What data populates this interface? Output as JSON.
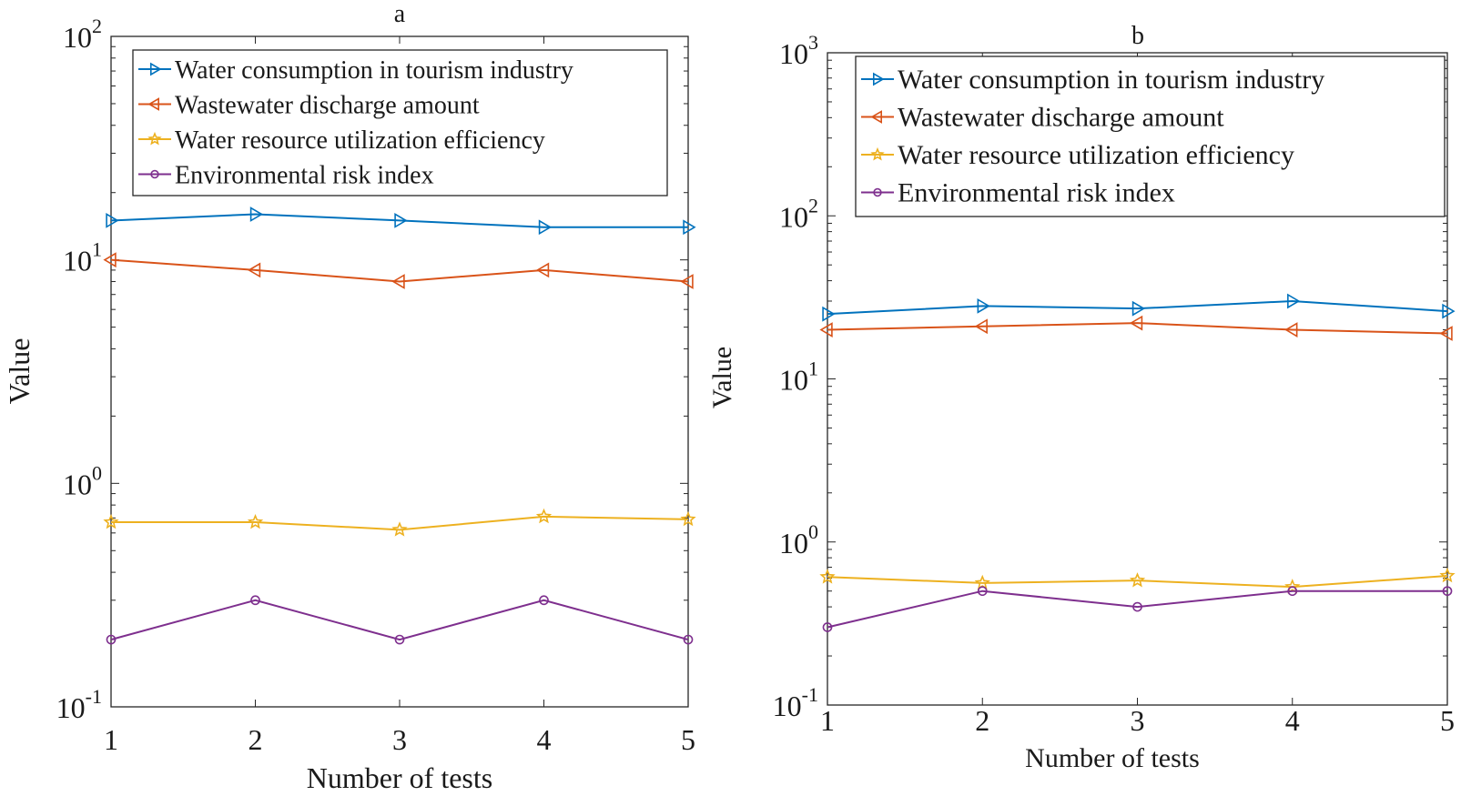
{
  "chart_data": [
    {
      "id": "a",
      "type": "line",
      "title": "a",
      "xlabel": "Number of tests",
      "ylabel": "Value",
      "yscale": "log",
      "ylim": [
        0.1,
        100
      ],
      "xlim": [
        1,
        5
      ],
      "x": [
        1,
        2,
        3,
        4,
        5
      ],
      "xtick_labels": [
        "1",
        "2",
        "3",
        "4",
        "5"
      ],
      "ytick_labels": [
        {
          "value": 0.1,
          "base": "10",
          "exp": "-1"
        },
        {
          "value": 1,
          "base": "10",
          "exp": "0"
        },
        {
          "value": 10,
          "base": "10",
          "exp": "1"
        },
        {
          "value": 100,
          "base": "10",
          "exp": "2"
        }
      ],
      "grid": false,
      "legend_position": "top-right",
      "series": [
        {
          "name": "Water consumption in tourism industry",
          "color": "#0072BD",
          "marker": "triangle-right",
          "values": [
            15,
            16,
            15,
            14,
            14
          ]
        },
        {
          "name": "Wastewater discharge amount",
          "color": "#D95319",
          "marker": "triangle-left",
          "values": [
            10,
            9,
            8,
            9,
            8
          ]
        },
        {
          "name": "Water resource utilization efficiency",
          "color": "#EDB120",
          "marker": "star",
          "values": [
            0.67,
            0.67,
            0.62,
            0.71,
            0.69
          ]
        },
        {
          "name": "Environmental risk index",
          "color": "#7E2F8E",
          "marker": "circle",
          "values": [
            0.2,
            0.3,
            0.2,
            0.3,
            0.2
          ]
        }
      ]
    },
    {
      "id": "b",
      "type": "line",
      "title": "b",
      "xlabel": "Number of tests",
      "ylabel": "Value",
      "yscale": "log",
      "ylim": [
        0.1,
        1000
      ],
      "xlim": [
        1,
        5
      ],
      "x": [
        1,
        2,
        3,
        4,
        5
      ],
      "xtick_labels": [
        "1",
        "2",
        "3",
        "4",
        "5"
      ],
      "ytick_labels": [
        {
          "value": 0.1,
          "base": "10",
          "exp": "-1"
        },
        {
          "value": 1,
          "base": "10",
          "exp": "0"
        },
        {
          "value": 10,
          "base": "10",
          "exp": "1"
        },
        {
          "value": 100,
          "base": "10",
          "exp": "2"
        },
        {
          "value": 1000,
          "base": "10",
          "exp": "3"
        }
      ],
      "grid": false,
      "legend_position": "top-right",
      "series": [
        {
          "name": "Water consumption in tourism industry",
          "color": "#0072BD",
          "marker": "triangle-right",
          "values": [
            25,
            28,
            27,
            30,
            26
          ]
        },
        {
          "name": "Wastewater discharge amount",
          "color": "#D95319",
          "marker": "triangle-left",
          "values": [
            20,
            21,
            22,
            20,
            19
          ]
        },
        {
          "name": "Water resource utilization efficiency",
          "color": "#EDB120",
          "marker": "star",
          "values": [
            0.61,
            0.56,
            0.58,
            0.53,
            0.62
          ]
        },
        {
          "name": "Environmental risk index",
          "color": "#7E2F8E",
          "marker": "circle",
          "values": [
            0.3,
            0.5,
            0.4,
            0.5,
            0.5
          ]
        }
      ]
    }
  ]
}
